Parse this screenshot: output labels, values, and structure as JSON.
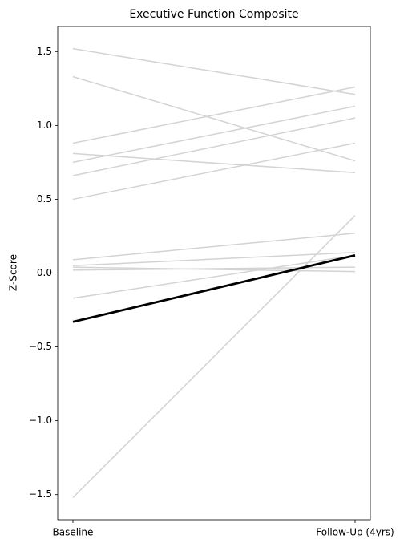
{
  "chart_data": {
    "type": "line",
    "title": "Executive Function Composite",
    "ylabel": "Z-Score",
    "categories": [
      "Baseline",
      "Follow-Up (4yrs)"
    ],
    "ylim": [
      -1.67,
      1.67
    ],
    "yticks": [
      {
        "value": -1.5,
        "label": "−1.5"
      },
      {
        "value": -1.0,
        "label": "−1.0"
      },
      {
        "value": -0.5,
        "label": "−0.5"
      },
      {
        "value": 0.0,
        "label": "0.0"
      },
      0.5,
      {
        "value": 1.0,
        "label": "1.0"
      },
      1.5
    ],
    "grid": false,
    "series": [
      {
        "color": "#d3d3d3",
        "linewidth": 1.5,
        "values": [
          1.52,
          1.21
        ]
      },
      {
        "color": "#d3d3d3",
        "linewidth": 1.5,
        "values": [
          1.33,
          0.76
        ]
      },
      {
        "color": "#d3d3d3",
        "linewidth": 1.5,
        "values": [
          0.88,
          1.26
        ]
      },
      {
        "color": "#d3d3d3",
        "linewidth": 1.5,
        "values": [
          0.75,
          1.13
        ]
      },
      {
        "color": "#d3d3d3",
        "linewidth": 1.5,
        "values": [
          0.81,
          0.68
        ]
      },
      {
        "color": "#d3d3d3",
        "linewidth": 1.5,
        "values": [
          0.66,
          1.05
        ]
      },
      {
        "color": "#d3d3d3",
        "linewidth": 1.5,
        "values": [
          0.5,
          0.88
        ]
      },
      {
        "color": "#d3d3d3",
        "linewidth": 1.5,
        "values": [
          0.09,
          0.27
        ]
      },
      {
        "color": "#d3d3d3",
        "linewidth": 1.5,
        "values": [
          0.05,
          0.14
        ]
      },
      {
        "color": "#d3d3d3",
        "linewidth": 1.5,
        "values": [
          0.04,
          0.01
        ]
      },
      {
        "color": "#d3d3d3",
        "linewidth": 1.5,
        "values": [
          0.02,
          0.04
        ]
      },
      {
        "color": "#d3d3d3",
        "linewidth": 1.5,
        "values": [
          -0.17,
          0.12
        ]
      },
      {
        "color": "#d3d3d3",
        "linewidth": 1.5,
        "values": [
          -1.52,
          0.39
        ]
      },
      {
        "color": "#000000",
        "linewidth": 2.8,
        "values": [
          -0.33,
          0.12
        ]
      }
    ]
  }
}
